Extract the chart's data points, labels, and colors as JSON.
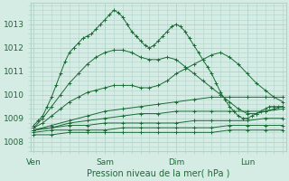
{
  "title": "",
  "xlabel": "Pression niveau de la mer( hPa )",
  "background_color": "#d5ece4",
  "plot_bg_color": "#d5ece4",
  "grid_color": "#b0d4ca",
  "line_color": "#1a6b35",
  "marker_color": "#1a6b35",
  "x_ticks": [
    0,
    48,
    96,
    144
  ],
  "x_tick_labels": [
    "Ven",
    "Sam",
    "Dim",
    "Lun"
  ],
  "ylim": [
    1007.6,
    1013.9
  ],
  "yticks": [
    1008,
    1009,
    1010,
    1011,
    1012,
    1013
  ],
  "xlim": [
    -2,
    170
  ],
  "figsize": [
    3.2,
    2.0
  ],
  "dpi": 100,
  "series": [
    {
      "x": [
        0,
        3,
        6,
        9,
        12,
        15,
        18,
        21,
        24,
        27,
        30,
        33,
        36,
        39,
        42,
        45,
        48,
        51,
        54,
        57,
        60,
        63,
        66,
        69,
        72,
        75,
        78,
        81,
        84,
        87,
        90,
        93,
        96,
        99,
        102,
        105,
        108,
        111,
        114,
        117,
        120,
        123,
        126,
        129,
        132,
        135,
        138,
        141,
        144,
        147,
        150,
        153,
        156,
        159,
        162,
        165,
        168
      ],
      "y": [
        1008.7,
        1008.9,
        1009.1,
        1009.5,
        1009.9,
        1010.4,
        1010.9,
        1011.4,
        1011.8,
        1012.0,
        1012.2,
        1012.4,
        1012.5,
        1012.6,
        1012.8,
        1013.0,
        1013.2,
        1013.4,
        1013.6,
        1013.5,
        1013.3,
        1013.0,
        1012.7,
        1012.5,
        1012.3,
        1012.1,
        1012.0,
        1012.1,
        1012.3,
        1012.5,
        1012.7,
        1012.9,
        1013.0,
        1012.9,
        1012.7,
        1012.4,
        1012.1,
        1011.8,
        1011.5,
        1011.2,
        1010.9,
        1010.5,
        1010.1,
        1009.8,
        1009.5,
        1009.3,
        1009.1,
        1009.0,
        1009.0,
        1009.1,
        1009.2,
        1009.3,
        1009.4,
        1009.5,
        1009.5,
        1009.5,
        1009.5
      ]
    },
    {
      "x": [
        0,
        6,
        12,
        18,
        24,
        30,
        36,
        42,
        48,
        54,
        60,
        66,
        72,
        78,
        84,
        90,
        96,
        102,
        108,
        114,
        120,
        126,
        132,
        138,
        144,
        150,
        156,
        162,
        168
      ],
      "y": [
        1008.6,
        1009.0,
        1009.5,
        1010.0,
        1010.5,
        1010.9,
        1011.3,
        1011.6,
        1011.8,
        1011.9,
        1011.9,
        1011.8,
        1011.6,
        1011.5,
        1011.5,
        1011.6,
        1011.5,
        1011.2,
        1010.9,
        1010.6,
        1010.3,
        1010.0,
        1009.7,
        1009.4,
        1009.2,
        1009.2,
        1009.3,
        1009.4,
        1009.5
      ]
    },
    {
      "x": [
        0,
        6,
        12,
        18,
        24,
        30,
        36,
        42,
        48,
        54,
        60,
        66,
        72,
        78,
        84,
        90,
        96,
        102,
        108,
        114,
        120,
        126,
        132,
        138,
        144,
        150,
        156,
        162,
        168
      ],
      "y": [
        1008.6,
        1008.8,
        1009.1,
        1009.4,
        1009.7,
        1009.9,
        1010.1,
        1010.2,
        1010.3,
        1010.4,
        1010.4,
        1010.4,
        1010.3,
        1010.3,
        1010.4,
        1010.6,
        1010.9,
        1011.1,
        1011.3,
        1011.5,
        1011.7,
        1011.8,
        1011.6,
        1011.3,
        1010.9,
        1010.5,
        1010.2,
        1009.9,
        1009.7
      ]
    },
    {
      "x": [
        0,
        12,
        24,
        36,
        48,
        60,
        72,
        84,
        96,
        108,
        120,
        132,
        144,
        156,
        168
      ],
      "y": [
        1008.5,
        1008.7,
        1008.9,
        1009.1,
        1009.3,
        1009.4,
        1009.5,
        1009.6,
        1009.7,
        1009.8,
        1009.9,
        1009.9,
        1009.9,
        1009.9,
        1009.9
      ]
    },
    {
      "x": [
        0,
        12,
        24,
        36,
        48,
        60,
        72,
        84,
        96,
        108,
        120,
        132,
        144,
        156,
        168
      ],
      "y": [
        1008.5,
        1008.6,
        1008.8,
        1008.9,
        1009.0,
        1009.1,
        1009.2,
        1009.2,
        1009.3,
        1009.3,
        1009.3,
        1009.3,
        1009.3,
        1009.3,
        1009.4
      ]
    },
    {
      "x": [
        0,
        12,
        24,
        36,
        48,
        60,
        72,
        84,
        96,
        108,
        120,
        132,
        144,
        156,
        168
      ],
      "y": [
        1008.5,
        1008.6,
        1008.7,
        1008.7,
        1008.8,
        1008.8,
        1008.8,
        1008.8,
        1008.8,
        1008.9,
        1008.9,
        1008.9,
        1008.9,
        1009.0,
        1009.0
      ]
    },
    {
      "x": [
        0,
        12,
        24,
        36,
        48,
        60,
        72,
        84,
        96,
        108,
        120,
        132,
        144,
        156,
        168
      ],
      "y": [
        1008.4,
        1008.5,
        1008.5,
        1008.5,
        1008.5,
        1008.6,
        1008.6,
        1008.6,
        1008.6,
        1008.6,
        1008.6,
        1008.7,
        1008.7,
        1008.7,
        1008.7
      ]
    },
    {
      "x": [
        0,
        12,
        24,
        36,
        48,
        60,
        72,
        84,
        96,
        108,
        120,
        132,
        144,
        156,
        168
      ],
      "y": [
        1008.3,
        1008.3,
        1008.4,
        1008.4,
        1008.4,
        1008.4,
        1008.4,
        1008.4,
        1008.4,
        1008.4,
        1008.4,
        1008.5,
        1008.5,
        1008.5,
        1008.5
      ]
    }
  ]
}
